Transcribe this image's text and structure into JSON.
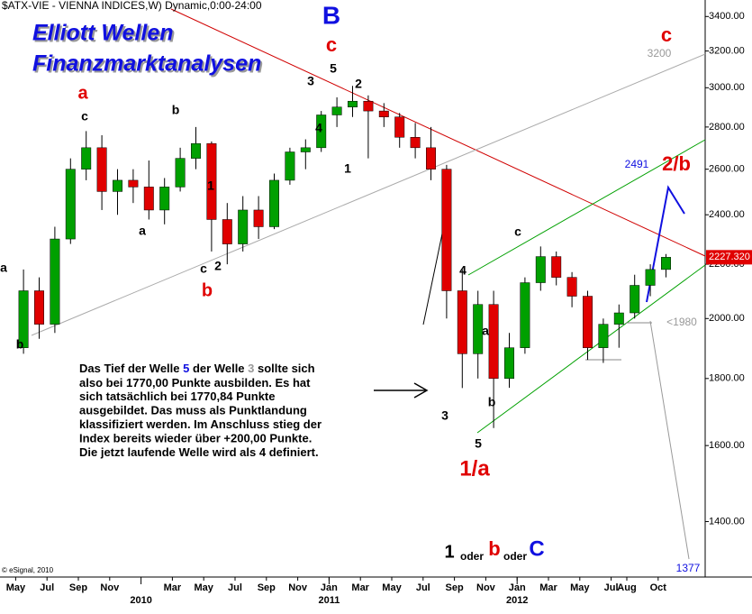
{
  "header": "$ATX-VIE - VIENNA INDICES,W) Dynamic,0:00-24:00",
  "title_lines": [
    "Elliott Wellen",
    "Finanzmarktanalysen"
  ],
  "copyright": "© eSignal, 2010",
  "chart_data": {
    "type": "candlestick",
    "log_scale": true,
    "x": [
      "2009-05",
      "2009-06",
      "2009-07",
      "2009-08",
      "2009-09",
      "2009-10",
      "2009-11",
      "2009-12",
      "2010-01",
      "2010-02",
      "2010-03",
      "2010-04",
      "2010-05",
      "2010-06",
      "2010-07",
      "2010-08",
      "2010-09",
      "2010-10",
      "2010-11",
      "2010-12",
      "2011-01",
      "2011-02",
      "2011-03",
      "2011-04",
      "2011-05",
      "2011-06",
      "2011-07",
      "2011-08",
      "2011-09",
      "2011-10",
      "2011-11",
      "2011-12",
      "2012-01",
      "2012-02",
      "2012-03",
      "2012-04",
      "2012-05",
      "2012-06",
      "2012-07",
      "2012-08",
      "2012-09",
      "2012-10"
    ],
    "open": [
      1900,
      2100,
      1980,
      2300,
      2600,
      2700,
      2500,
      2550,
      2520,
      2420,
      2520,
      2650,
      2720,
      2380,
      2280,
      2420,
      2350,
      2550,
      2680,
      2700,
      2860,
      2900,
      2930,
      2880,
      2850,
      2750,
      2700,
      2600,
      2100,
      1880,
      2050,
      1800,
      1900,
      2130,
      2230,
      2150,
      2080,
      1900,
      1980,
      2020,
      2120,
      2180
    ],
    "high": [
      2180,
      2150,
      2350,
      2650,
      2780,
      2760,
      2600,
      2600,
      2640,
      2560,
      2700,
      2800,
      2730,
      2450,
      2480,
      2480,
      2580,
      2700,
      2740,
      2880,
      2950,
      3010,
      2960,
      2920,
      2870,
      2820,
      2800,
      2620,
      2180,
      2100,
      2100,
      1950,
      2150,
      2270,
      2250,
      2170,
      2100,
      2000,
      2050,
      2160,
      2200,
      2240
    ],
    "low": [
      1880,
      1930,
      1950,
      2280,
      2550,
      2420,
      2400,
      2450,
      2380,
      2360,
      2500,
      2600,
      2250,
      2200,
      2250,
      2300,
      2340,
      2530,
      2600,
      2680,
      2800,
      2850,
      2650,
      2800,
      2700,
      2650,
      2550,
      2000,
      1770,
      1800,
      1650,
      1771,
      1880,
      2100,
      2120,
      2040,
      1860,
      1850,
      1900,
      2000,
      2080,
      2150
    ],
    "close": [
      2100,
      1980,
      2300,
      2600,
      2700,
      2500,
      2550,
      2520,
      2420,
      2520,
      2650,
      2720,
      2380,
      2280,
      2420,
      2350,
      2550,
      2680,
      2700,
      2860,
      2900,
      2930,
      2880,
      2850,
      2750,
      2700,
      2600,
      2100,
      1880,
      2050,
      1800,
      1900,
      2130,
      2230,
      2150,
      2080,
      1900,
      1980,
      2020,
      2120,
      2180,
      2227.32
    ],
    "up_color": "#00a000",
    "down_color": "#e00000",
    "ylim": [
      1270,
      3500
    ],
    "yticks": [
      {
        "value": 1400,
        "label": "1400.00"
      },
      {
        "value": 1600,
        "label": "1600.00"
      },
      {
        "value": 1800,
        "label": "1800.00"
      },
      {
        "value": 2000,
        "label": "2000.00"
      },
      {
        "value": 2200,
        "label": "2200.00"
      },
      {
        "value": 2400,
        "label": "2400.00"
      },
      {
        "value": 2600,
        "label": "2600.00"
      },
      {
        "value": 2800,
        "label": "2800.00"
      },
      {
        "value": 3000,
        "label": "3000.00"
      },
      {
        "value": 3200,
        "label": "3200.00"
      },
      {
        "value": 3400,
        "label": "3400.00"
      }
    ],
    "xlim": [
      "2009-04",
      "2013-01"
    ],
    "xticks": [
      {
        "value": "2009-05",
        "label": "May"
      },
      {
        "value": "2009-07",
        "label": "Jul"
      },
      {
        "value": "2009-09",
        "label": "Sep"
      },
      {
        "value": "2009-11",
        "label": "Nov"
      },
      {
        "value": "2010-03",
        "label": "Mar"
      },
      {
        "value": "2010-05",
        "label": "May"
      },
      {
        "value": "2010-07",
        "label": "Jul"
      },
      {
        "value": "2010-09",
        "label": "Sep"
      },
      {
        "value": "2010-11",
        "label": "Nov"
      },
      {
        "value": "2011-01",
        "label": "Jan"
      },
      {
        "value": "2011-03",
        "label": "Mar"
      },
      {
        "value": "2011-05",
        "label": "May"
      },
      {
        "value": "2011-07",
        "label": "Jul"
      },
      {
        "value": "2011-09",
        "label": "Sep"
      },
      {
        "value": "2011-11",
        "label": "Nov"
      },
      {
        "value": "2012-01",
        "label": "Jan"
      },
      {
        "value": "2012-03",
        "label": "Mar"
      },
      {
        "value": "2012-05",
        "label": "May"
      },
      {
        "value": "2012-07",
        "label": "Jul"
      },
      {
        "value": "2012-08",
        "label": "Aug"
      },
      {
        "value": "2012-10",
        "label": "Oct"
      }
    ],
    "year_labels": [
      {
        "value": "2010-01",
        "label": "2010"
      },
      {
        "value": "2011-01",
        "label": "2011"
      },
      {
        "value": "2012-01",
        "label": "2012"
      }
    ],
    "last_price": {
      "value": 2227.32,
      "label": "2227.320"
    }
  },
  "wave_labels": [
    {
      "text": "a",
      "color": "#000000"
    },
    {
      "text": "b",
      "color": "#000000"
    },
    {
      "text": "c",
      "color": "#000000"
    },
    {
      "text": "b",
      "color": "#000000"
    },
    {
      "text": "a",
      "color": "#000000"
    },
    {
      "text": "1",
      "color": "#000000"
    },
    {
      "text": "c",
      "color": "#000000"
    },
    {
      "text": "2",
      "color": "#000000"
    },
    {
      "text": "3",
      "color": "#000000"
    },
    {
      "text": "5",
      "color": "#000000"
    },
    {
      "text": "4",
      "color": "#000000"
    },
    {
      "text": "2",
      "color": "#000000"
    },
    {
      "text": "1",
      "color": "#000000"
    },
    {
      "text": "4",
      "color": "#000000"
    },
    {
      "text": "c",
      "color": "#000000"
    },
    {
      "text": "a",
      "color": "#000000"
    },
    {
      "text": "b",
      "color": "#000000"
    },
    {
      "text": "3",
      "color": "#000000"
    },
    {
      "text": "5",
      "color": "#000000"
    },
    {
      "text": "a",
      "color": "#e00000"
    },
    {
      "text": "b",
      "color": "#e00000"
    },
    {
      "text": "c",
      "color": "#e00000"
    },
    {
      "text": "c",
      "color": "#e00000"
    },
    {
      "text": "1/a",
      "color": "#e00000"
    },
    {
      "text": "2/b",
      "color": "#e00000"
    },
    {
      "text": "B",
      "color": "#1010e0"
    }
  ],
  "level_labels": [
    {
      "text": "3200",
      "color": "#999999"
    },
    {
      "text": "2491",
      "color": "#1010e0"
    },
    {
      "text": "<1980",
      "color": "#999999"
    },
    {
      "text": "1377",
      "color": "#1010e0"
    }
  ],
  "note": {
    "first_line": [
      {
        "text": "Das Tief der Welle ",
        "color": "#000000"
      },
      {
        "text": "5",
        "color": "#1010e0"
      },
      {
        "text": " der Welle ",
        "color": "#000000"
      },
      {
        "text": "3",
        "color": "#999999"
      },
      {
        "text": " sollte sich",
        "color": "#000000"
      }
    ],
    "lines": [
      "also bei 1770,00 Punkte ausbilden. Es hat",
      "sich tatsächlich bei 1770,84 Punkte",
      "ausgebildet. Das muss als Punktlandung",
      "klassifiziert werden. Im Anschluss stieg der",
      "Index bereits wieder über +200,00 Punkte.",
      "Die jetzt laufende Welle wird als 4 definiert."
    ]
  },
  "alternatives": [
    {
      "text": "1",
      "color": "#000000"
    },
    {
      "text": "oder",
      "color": "#000000"
    },
    {
      "text": "b",
      "color": "#e00000"
    },
    {
      "text": "oder",
      "color": "#000000"
    },
    {
      "text": "C",
      "color": "#1010e0"
    }
  ]
}
